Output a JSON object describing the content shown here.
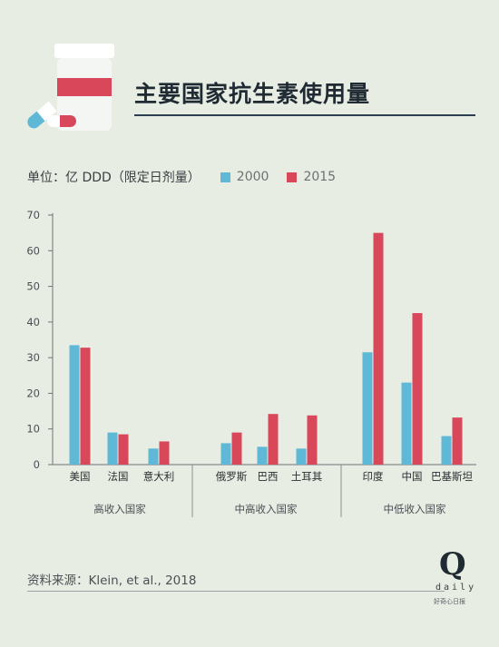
{
  "header": {
    "title": "主要国家抗生素使用量"
  },
  "legend": {
    "unit_label": "单位：亿 DDD（限定日剂量）",
    "items": [
      {
        "label": "2000",
        "color": "#5eb8d6"
      },
      {
        "label": "2015",
        "color": "#d9475a"
      }
    ]
  },
  "chart_data": {
    "type": "bar",
    "categories": [
      "美国",
      "法国",
      "意大利",
      "俄罗斯",
      "巴西",
      "土耳其",
      "印度",
      "中国",
      "巴基斯坦"
    ],
    "series": [
      {
        "name": "2000",
        "values": [
          33.5,
          9,
          4.5,
          6,
          5,
          4.5,
          31.5,
          23,
          8
        ],
        "color": "#5eb8d6"
      },
      {
        "name": "2015",
        "values": [
          32.8,
          8.5,
          6.5,
          9,
          14.2,
          13.8,
          65,
          42.5,
          13.2
        ],
        "color": "#d9475a"
      }
    ],
    "groups": [
      {
        "label": "高收入国家",
        "categories": [
          "美国",
          "法国",
          "意大利"
        ]
      },
      {
        "label": "中高收入国家",
        "categories": [
          "俄罗斯",
          "巴西",
          "土耳其"
        ]
      },
      {
        "label": "中低收入国家",
        "categories": [
          "印度",
          "中国",
          "巴基斯坦"
        ]
      }
    ],
    "yticks": [
      0,
      10,
      20,
      30,
      40,
      50,
      60,
      70
    ],
    "ylim": [
      0,
      70
    ],
    "grid": false,
    "legend_position": "top-left"
  },
  "footer": {
    "source": "资料来源：Klein, et al., 2018",
    "brand_letter": "Q",
    "brand_word": "daily",
    "brand_sub": "好奇心日报"
  }
}
